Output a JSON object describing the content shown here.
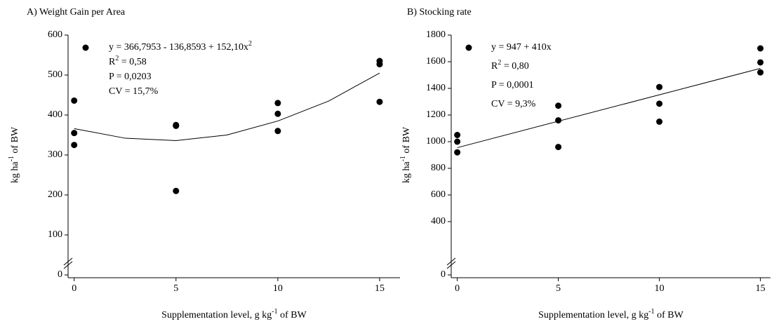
{
  "chart_data": [
    {
      "type": "scatter",
      "title": "A) Weight Gain per Area",
      "x_label": [
        {
          "text": "Supplementation level, g kg"
        },
        {
          "sup": "-1"
        },
        {
          "text": " of BW"
        }
      ],
      "y_label": [
        {
          "text": "kg ha"
        },
        {
          "sup": "-1"
        },
        {
          "text": " of BW"
        }
      ],
      "annotation": [
        [
          {
            "text": "y = 366,7953 - 136,8593 + 152,10x"
          },
          {
            "sup": "2"
          }
        ],
        [
          {
            "text": "R"
          },
          {
            "sup": "2"
          },
          {
            "text": " = 0,58"
          }
        ],
        [
          {
            "text": "P = 0,0203"
          }
        ],
        [
          {
            "text": "CV = 15,7%"
          }
        ]
      ],
      "x": [
        0,
        0,
        0,
        5,
        5,
        5,
        10,
        10,
        10,
        15,
        15,
        15
      ],
      "y": [
        436,
        355,
        325,
        375,
        373,
        210,
        430,
        403,
        360,
        535,
        527,
        433
      ],
      "color": "#000000",
      "fit": {
        "x": [
          0,
          2.5,
          5,
          7.5,
          10,
          12.5,
          15
        ],
        "y": [
          366,
          342,
          336,
          350,
          385,
          435,
          505
        ]
      },
      "xlim": [
        -0.3,
        16
      ],
      "ylim": [
        0,
        600
      ],
      "xticks": [
        0,
        5,
        10,
        15
      ],
      "yticks": [
        0,
        100,
        200,
        300,
        400,
        500,
        600
      ]
    },
    {
      "type": "scatter",
      "title": "B) Stocking rate",
      "x_label": [
        {
          "text": "Supplementation  level, g kg"
        },
        {
          "sup": "-1"
        },
        {
          "text": " of BW"
        }
      ],
      "y_label": [
        {
          "text": "kg ha"
        },
        {
          "sup": "-1"
        },
        {
          "text": " of BW"
        }
      ],
      "annotation": [
        [
          {
            "text": "y = 947 + 410x"
          }
        ],
        [
          {
            "text": "R"
          },
          {
            "sup": "2"
          },
          {
            "text": " = 0,80"
          }
        ],
        [
          {
            "text": "P = 0,0001"
          }
        ],
        [
          {
            "text": "CV = 9,3%"
          }
        ]
      ],
      "x": [
        0,
        0,
        0,
        5,
        5,
        5,
        10,
        10,
        10,
        15,
        15,
        15
      ],
      "y": [
        1050,
        1000,
        920,
        1270,
        1160,
        960,
        1410,
        1285,
        1150,
        1700,
        1595,
        1520
      ],
      "color": "#000000",
      "fit": {
        "x": [
          0,
          15
        ],
        "y": [
          955,
          1550
        ]
      },
      "xlim": [
        -0.3,
        15.5
      ],
      "ylim": [
        0,
        1800
      ],
      "xticks": [
        0,
        5,
        10,
        15
      ],
      "yticks": [
        0,
        400,
        600,
        800,
        1000,
        1200,
        1400,
        1600,
        1800
      ]
    }
  ]
}
